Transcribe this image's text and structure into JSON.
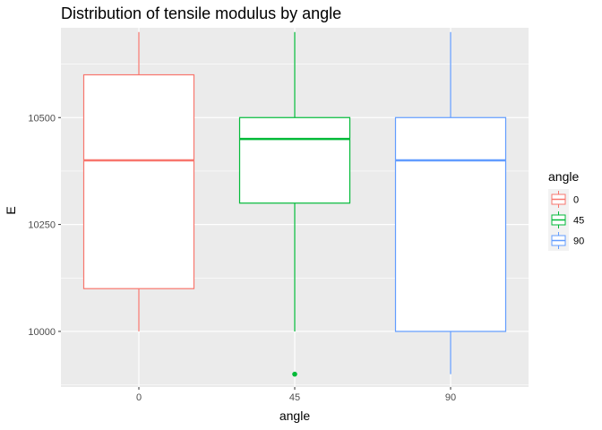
{
  "chart_data": {
    "type": "boxplot",
    "title": "Distribution of tensile modulus by angle",
    "xlabel": "angle",
    "ylabel": "E",
    "categories": [
      "0",
      "45",
      "90"
    ],
    "ylim": [
      9870,
      10710
    ],
    "yticks": [
      10000,
      10250,
      10500
    ],
    "ytick_labels": [
      "10000",
      "10250",
      "10500"
    ],
    "grid": true,
    "legend": {
      "title": "angle",
      "position": "right",
      "entries": [
        "0",
        "45",
        "90"
      ]
    },
    "series": [
      {
        "category": "0",
        "color": "#F8766D",
        "whisker_low": 10000,
        "q1": 10100,
        "median": 10400,
        "q3": 10600,
        "whisker_high": 10700,
        "outliers": []
      },
      {
        "category": "45",
        "color": "#00BA38",
        "whisker_low": 10000,
        "q1": 10300,
        "median": 10450,
        "q3": 10500,
        "whisker_high": 10700,
        "outliers": [
          9900
        ]
      },
      {
        "category": "90",
        "color": "#619CFF",
        "whisker_low": 9900,
        "q1": 10000,
        "median": 10400,
        "q3": 10500,
        "whisker_high": 10700,
        "outliers": []
      }
    ]
  }
}
